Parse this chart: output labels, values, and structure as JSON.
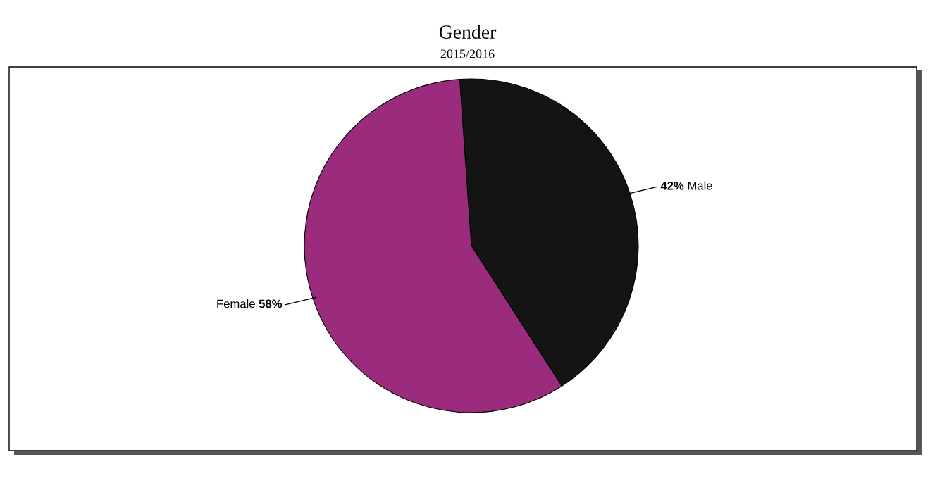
{
  "chart_data": {
    "type": "pie",
    "title": "Gender",
    "subtitle": "2015/2016",
    "categories": [
      "Male",
      "Female"
    ],
    "values": [
      42,
      58
    ],
    "colors": [
      "#141414",
      "#9b2c7d"
    ],
    "value_labels": [
      "42%",
      "58%"
    ],
    "legend": false
  }
}
